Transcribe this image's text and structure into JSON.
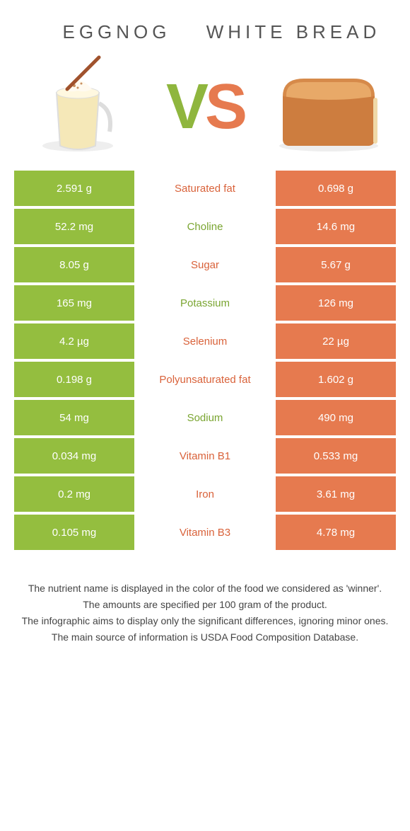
{
  "header": {
    "left_title": "Eggnog",
    "right_title": "White Bread"
  },
  "vs": {
    "v": "V",
    "s": "S"
  },
  "colors": {
    "green": "#94be3f",
    "orange": "#e67a4f",
    "mid_green": "#7aa531",
    "mid_orange": "#d9623a",
    "background": "#ffffff"
  },
  "rows": [
    {
      "left": "2.591 g",
      "label": "Saturated fat",
      "label_color": "orange",
      "right": "0.698 g"
    },
    {
      "left": "52.2 mg",
      "label": "Choline",
      "label_color": "green",
      "right": "14.6 mg"
    },
    {
      "left": "8.05 g",
      "label": "Sugar",
      "label_color": "orange",
      "right": "5.67 g"
    },
    {
      "left": "165 mg",
      "label": "Potassium",
      "label_color": "green",
      "right": "126 mg"
    },
    {
      "left": "4.2 µg",
      "label": "Selenium",
      "label_color": "orange",
      "right": "22 µg"
    },
    {
      "left": "0.198 g",
      "label": "Polyunsaturated fat",
      "label_color": "orange",
      "right": "1.602 g"
    },
    {
      "left": "54 mg",
      "label": "Sodium",
      "label_color": "green",
      "right": "490 mg"
    },
    {
      "left": "0.034 mg",
      "label": "Vitamin B1",
      "label_color": "orange",
      "right": "0.533 mg"
    },
    {
      "left": "0.2 mg",
      "label": "Iron",
      "label_color": "orange",
      "right": "3.61 mg"
    },
    {
      "left": "0.105 mg",
      "label": "Vitamin B3",
      "label_color": "orange",
      "right": "4.78 mg"
    }
  ],
  "footer": {
    "line1": "The nutrient name is displayed in the color of the food we considered as 'winner'.",
    "line2": "The amounts are specified per 100 gram of the product.",
    "line3": "The infographic aims to display only the significant differences, ignoring minor ones.",
    "line4": "The main source of information is USDA Food Composition Database."
  }
}
